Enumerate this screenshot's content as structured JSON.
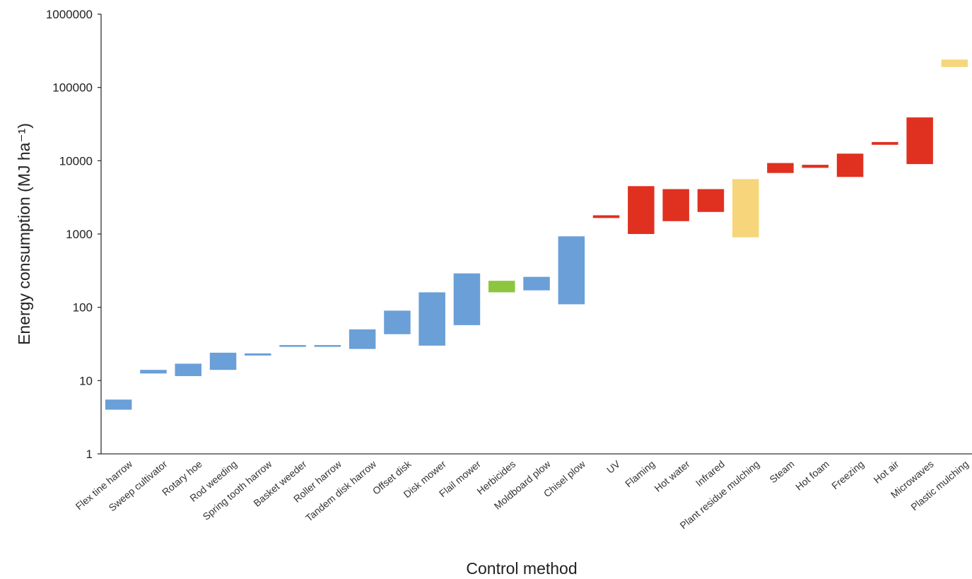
{
  "chart_data": {
    "type": "bar",
    "subtype": "floating-range",
    "xlabel": "Control method",
    "ylabel": "Energy consumption (MJ ha⁻¹)",
    "yscale": "log",
    "ylim": [
      1,
      1000000
    ],
    "yticks": [
      {
        "value": 1,
        "label": "1"
      },
      {
        "value": 10,
        "label": "10"
      },
      {
        "value": 100,
        "label": "100"
      },
      {
        "value": 1000,
        "label": "1000"
      },
      {
        "value": 10000,
        "label": "10000"
      },
      {
        "value": 100000,
        "label": "100000"
      },
      {
        "value": 1000000,
        "label": "1000000"
      }
    ],
    "grid": false,
    "legend": "none",
    "colors": {
      "mechanical": "#6a9fd8",
      "chemical": "#8cc63f",
      "thermal": "#e03020",
      "mulching": "#f7d57a"
    },
    "categories": [
      "Flex tine harrow",
      "Sweep cultivator",
      "Rotary hoe",
      "Rod weeding",
      "Spring tooth harrow",
      "Basket weeder",
      "Roller harrow",
      "Tandem disk harrow",
      "Offset disk",
      "Disk mower",
      "Flail mower",
      "Herbicides",
      "Moldboard plow",
      "Chisel plow",
      "UV",
      "Flaming",
      "Hot water",
      "Infrared",
      "Plant residue mulching",
      "Steam",
      "Hot foam",
      "Freezing",
      "Hot air",
      "Microwaves",
      "Plastic mulching"
    ],
    "ranges": [
      {
        "low": 4,
        "high": 5.5,
        "group": "mechanical"
      },
      {
        "low": 12.5,
        "high": 14,
        "group": "mechanical"
      },
      {
        "low": 11.5,
        "high": 17,
        "group": "mechanical"
      },
      {
        "low": 14,
        "high": 24,
        "group": "mechanical"
      },
      {
        "low": 22,
        "high": 23.5,
        "group": "mechanical"
      },
      {
        "low": 29,
        "high": 30.5,
        "group": "mechanical"
      },
      {
        "low": 29,
        "high": 30.5,
        "group": "mechanical"
      },
      {
        "low": 27,
        "high": 50,
        "group": "mechanical"
      },
      {
        "low": 43,
        "high": 90,
        "group": "mechanical"
      },
      {
        "low": 30,
        "high": 160,
        "group": "mechanical"
      },
      {
        "low": 57,
        "high": 290,
        "group": "mechanical"
      },
      {
        "low": 160,
        "high": 230,
        "group": "chemical"
      },
      {
        "low": 170,
        "high": 260,
        "group": "mechanical"
      },
      {
        "low": 110,
        "high": 930,
        "group": "mechanical"
      },
      {
        "low": 1650,
        "high": 1800,
        "group": "thermal"
      },
      {
        "low": 1000,
        "high": 4500,
        "group": "thermal"
      },
      {
        "low": 1500,
        "high": 4100,
        "group": "thermal"
      },
      {
        "low": 2000,
        "high": 4100,
        "group": "thermal"
      },
      {
        "low": 900,
        "high": 5600,
        "group": "mulching"
      },
      {
        "low": 6800,
        "high": 9300,
        "group": "thermal"
      },
      {
        "low": 8000,
        "high": 8800,
        "group": "thermal"
      },
      {
        "low": 6000,
        "high": 12500,
        "group": "thermal"
      },
      {
        "low": 16500,
        "high": 18000,
        "group": "thermal"
      },
      {
        "low": 9000,
        "high": 39000,
        "group": "thermal"
      },
      {
        "low": 190000,
        "high": 240000,
        "group": "mulching"
      }
    ]
  }
}
